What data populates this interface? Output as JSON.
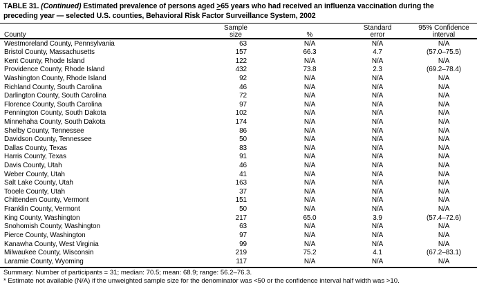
{
  "title": {
    "label": "TABLE 31.",
    "continued": "(Continued)",
    "line1_mid": " Estimated prevalence of persons aged ",
    "geq_symbol": ">",
    "line1_end": "65 years who had received an influenza vaccination during the",
    "line2": "preceding year — selected U.S. counties, Behavioral Risk Factor Surveillance System, 2002"
  },
  "header": {
    "county": "County",
    "sample_line1": "Sample",
    "sample_line2": "size",
    "percent": "%",
    "stderr_line1": "Standard",
    "stderr_line2": "error",
    "ci_line1": "95% Confidence",
    "ci_line2": "interval"
  },
  "rows": [
    {
      "county": "Westmoreland County, Pennsylvania",
      "n": "63",
      "pct": "N/A",
      "se": "N/A",
      "ci": "N/A"
    },
    {
      "county": "Bristol County, Massachusetts",
      "n": "157",
      "pct": "66.3",
      "se": "4.7",
      "ci": "(57.0–75.5)"
    },
    {
      "county": "Kent County, Rhode Island",
      "n": "122",
      "pct": "N/A",
      "se": "N/A",
      "ci": "N/A"
    },
    {
      "county": "Providence County, Rhode Island",
      "n": "432",
      "pct": "73.8",
      "se": "2.3",
      "ci": "(69.2–78.4)"
    },
    {
      "county": "Washington County, Rhode Island",
      "n": "92",
      "pct": "N/A",
      "se": "N/A",
      "ci": "N/A"
    },
    {
      "county": "Richland County, South Carolina",
      "n": "46",
      "pct": "N/A",
      "se": "N/A",
      "ci": "N/A"
    },
    {
      "county": "Darlington County, South Carolina",
      "n": "72",
      "pct": "N/A",
      "se": "N/A",
      "ci": "N/A"
    },
    {
      "county": "Florence County, South Carolina",
      "n": "97",
      "pct": "N/A",
      "se": "N/A",
      "ci": "N/A"
    },
    {
      "county": "Pennington County, South Dakota",
      "n": "102",
      "pct": "N/A",
      "se": "N/A",
      "ci": "N/A"
    },
    {
      "county": "Minnehaha County, South Dakota",
      "n": "174",
      "pct": "N/A",
      "se": "N/A",
      "ci": "N/A"
    },
    {
      "county": "Shelby County, Tennessee",
      "n": "86",
      "pct": "N/A",
      "se": "N/A",
      "ci": "N/A"
    },
    {
      "county": "Davidson County, Tennessee",
      "n": "50",
      "pct": "N/A",
      "se": "N/A",
      "ci": "N/A"
    },
    {
      "county": "Dallas County, Texas",
      "n": "83",
      "pct": "N/A",
      "se": "N/A",
      "ci": "N/A"
    },
    {
      "county": "Harris County, Texas",
      "n": "91",
      "pct": "N/A",
      "se": "N/A",
      "ci": "N/A"
    },
    {
      "county": "Davis County, Utah",
      "n": "46",
      "pct": "N/A",
      "se": "N/A",
      "ci": "N/A"
    },
    {
      "county": "Weber County, Utah",
      "n": "41",
      "pct": "N/A",
      "se": "N/A",
      "ci": "N/A"
    },
    {
      "county": "Salt Lake County, Utah",
      "n": "163",
      "pct": "N/A",
      "se": "N/A",
      "ci": "N/A"
    },
    {
      "county": "Tooele County, Utah",
      "n": "37",
      "pct": "N/A",
      "se": "N/A",
      "ci": "N/A"
    },
    {
      "county": "Chittenden County, Vermont",
      "n": "151",
      "pct": "N/A",
      "se": "N/A",
      "ci": "N/A"
    },
    {
      "county": "Franklin County, Vermont",
      "n": "50",
      "pct": "N/A",
      "se": "N/A",
      "ci": "N/A"
    },
    {
      "county": "King County, Washington",
      "n": "217",
      "pct": "65.0",
      "se": "3.9",
      "ci": "(57.4–72.6)"
    },
    {
      "county": "Snohomish County, Washington",
      "n": "63",
      "pct": "N/A",
      "se": "N/A",
      "ci": "N/A"
    },
    {
      "county": "Pierce County, Washington",
      "n": "97",
      "pct": "N/A",
      "se": "N/A",
      "ci": "N/A"
    },
    {
      "county": "Kanawha County, West Virginia",
      "n": "99",
      "pct": "N/A",
      "se": "N/A",
      "ci": "N/A"
    },
    {
      "county": "Milwaukee County, Wisconsin",
      "n": "219",
      "pct": "75.2",
      "se": "4.1",
      "ci": "(67.2–83.1)"
    },
    {
      "county": "Laramie County, Wyoming",
      "n": "117",
      "pct": "N/A",
      "se": "N/A",
      "ci": "N/A"
    }
  ],
  "summary": "Summary: Number of participants = 31; median: 70.5; mean: 68.9; range: 56.2–76.3.",
  "footnote": "* Estimate not available (N/A) if the unweighted sample size for the denominator was <50 or the confidence interval half width was >10."
}
